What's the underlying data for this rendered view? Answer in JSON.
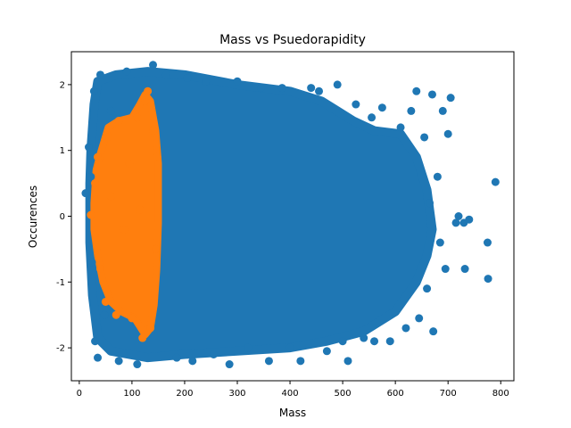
{
  "chart_data": {
    "type": "scatter",
    "title": "Mass vs Psuedorapidity",
    "xlabel": "Mass",
    "ylabel": "Occurences",
    "xlim": [
      -15,
      825
    ],
    "ylim": [
      -2.5,
      2.5
    ],
    "xticks": [
      0,
      100,
      200,
      300,
      400,
      500,
      600,
      700,
      800
    ],
    "yticks": [
      -2,
      -1,
      0,
      1,
      2
    ],
    "grid": false,
    "legend": "none",
    "series": [
      {
        "color": "#1f77b4",
        "points": [
          [
            12,
            0.35
          ],
          [
            18,
            1.05
          ],
          [
            22,
            0.6
          ],
          [
            24,
            -0.7
          ],
          [
            28,
            1.9
          ],
          [
            30,
            -1.9
          ],
          [
            35,
            -2.15
          ],
          [
            40,
            2.15
          ],
          [
            48,
            -1.5
          ],
          [
            60,
            1.6
          ],
          [
            75,
            -2.2
          ],
          [
            90,
            2.2
          ],
          [
            110,
            -2.25
          ],
          [
            140,
            2.3
          ],
          [
            165,
            2.15
          ],
          [
            185,
            -2.15
          ],
          [
            205,
            2.1
          ],
          [
            215,
            -2.2
          ],
          [
            240,
            2.05
          ],
          [
            255,
            -2.1
          ],
          [
            285,
            -2.25
          ],
          [
            300,
            2.05
          ],
          [
            320,
            -2.0
          ],
          [
            345,
            1.95
          ],
          [
            360,
            -2.2
          ],
          [
            385,
            1.95
          ],
          [
            400,
            -2.0
          ],
          [
            420,
            -2.2
          ],
          [
            440,
            1.95
          ],
          [
            455,
            1.9
          ],
          [
            470,
            -2.05
          ],
          [
            490,
            2.0
          ],
          [
            500,
            -1.9
          ],
          [
            510,
            -2.2
          ],
          [
            525,
            1.7
          ],
          [
            540,
            -1.85
          ],
          [
            555,
            1.5
          ],
          [
            560,
            -1.9
          ],
          [
            575,
            1.65
          ],
          [
            590,
            -1.9
          ],
          [
            610,
            1.35
          ],
          [
            620,
            -1.7
          ],
          [
            630,
            1.6
          ],
          [
            640,
            1.9
          ],
          [
            645,
            -1.55
          ],
          [
            655,
            1.2
          ],
          [
            660,
            -1.1
          ],
          [
            665,
            0.2
          ],
          [
            670,
            1.85
          ],
          [
            672,
            -1.75
          ],
          [
            680,
            0.6
          ],
          [
            685,
            -0.4
          ],
          [
            690,
            1.6
          ],
          [
            695,
            -0.8
          ],
          [
            700,
            1.25
          ],
          [
            705,
            1.8
          ],
          [
            715,
            -0.1
          ],
          [
            720,
            0.0
          ],
          [
            730,
            -0.1
          ],
          [
            732,
            -0.8
          ],
          [
            740,
            -0.05
          ],
          [
            775,
            -0.4
          ],
          [
            776,
            -0.95
          ],
          [
            790,
            0.52
          ]
        ]
      },
      {
        "color": "#ff7f0e",
        "points": [
          [
            22,
            0.02
          ],
          [
            30,
            0.5
          ],
          [
            35,
            0.9
          ],
          [
            40,
            -0.8
          ],
          [
            50,
            -1.3
          ],
          [
            55,
            1.2
          ],
          [
            60,
            0.3
          ],
          [
            70,
            -1.5
          ],
          [
            75,
            1.45
          ],
          [
            85,
            -0.2
          ],
          [
            95,
            0.8
          ],
          [
            100,
            -1.55
          ],
          [
            110,
            1.5
          ],
          [
            115,
            0.1
          ],
          [
            120,
            -1.85
          ],
          [
            125,
            1.75
          ],
          [
            130,
            1.9
          ],
          [
            135,
            -1.7
          ],
          [
            140,
            1.3
          ],
          [
            145,
            -0.5
          ],
          [
            148,
            0.9
          ]
        ]
      }
    ]
  }
}
